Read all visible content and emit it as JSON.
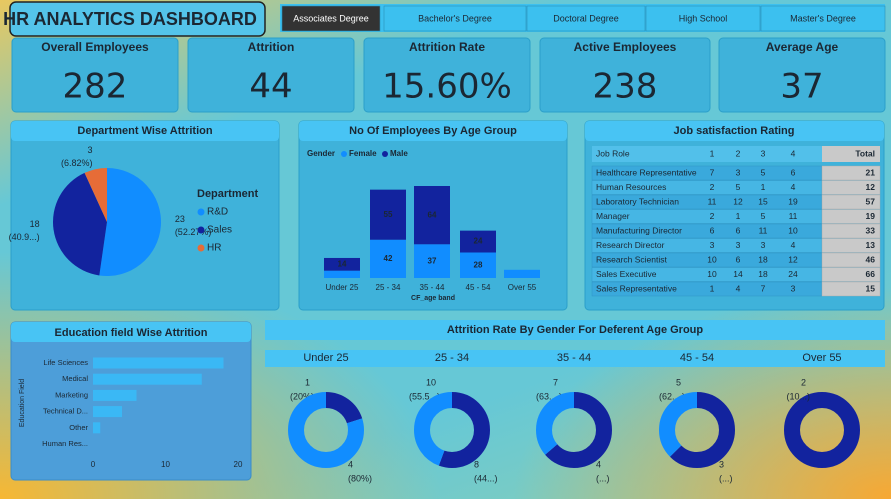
{
  "header": {
    "title": "HR ANALYTICS DASHBOARD"
  },
  "tabs": [
    {
      "label": "Associates Degree",
      "selected": true
    },
    {
      "label": "Bachelor's Degree",
      "selected": false
    },
    {
      "label": "Doctoral Degree",
      "selected": false
    },
    {
      "label": "High School",
      "selected": false
    },
    {
      "label": "Master's Degree",
      "selected": false
    }
  ],
  "kpis": [
    {
      "label": "Overall Employees",
      "value": 282
    },
    {
      "label": "Attrition",
      "value": 44
    },
    {
      "label": "Attrition Rate",
      "value": "15.60%"
    },
    {
      "label": "Active Employees",
      "value": 238
    },
    {
      "label": "Average Age",
      "value": 37
    }
  ],
  "table": {
    "title": "Job satisfaction Rating",
    "columns": [
      "Job Role",
      "1",
      "2",
      "3",
      "4",
      "Total"
    ],
    "rows": [
      [
        "Healthcare Representative",
        7,
        3,
        5,
        6,
        21
      ],
      [
        "Human Resources",
        2,
        5,
        1,
        4,
        12
      ],
      [
        "Laboratory Technician",
        11,
        12,
        15,
        19,
        57
      ],
      [
        "Manager",
        2,
        1,
        5,
        11,
        19
      ],
      [
        "Manufacturing Director",
        6,
        6,
        11,
        10,
        33
      ],
      [
        "Research Director",
        3,
        3,
        3,
        4,
        13
      ],
      [
        "Research Scientist",
        10,
        6,
        18,
        12,
        46
      ],
      [
        "Sales Executive",
        10,
        14,
        18,
        24,
        66
      ],
      [
        "Sales Representative",
        1,
        4,
        7,
        3,
        15
      ]
    ]
  },
  "chart_data": [
    {
      "type": "pie",
      "title": "Department Wise Attrition",
      "legend_title": "Department",
      "categories": [
        "R&D",
        "Sales",
        "HR"
      ],
      "values": [
        23,
        18,
        3
      ],
      "percent_labels": [
        "(52.27%)",
        "(40.9...)",
        "(6.82%)"
      ],
      "colors": [
        "#118dff",
        "#12239e",
        "#e66c37"
      ]
    },
    {
      "type": "bar",
      "stacked": true,
      "title": "No Of Employees By Age Group",
      "legend_title": "Gender",
      "x_label": "CF_age band",
      "categories": [
        "Under 25",
        "25 - 34",
        "35 - 44",
        "45 - 54",
        "Over 55"
      ],
      "series": [
        {
          "name": "Female",
          "color": "#118dff",
          "values": [
            8,
            42,
            37,
            28,
            9
          ]
        },
        {
          "name": "Male",
          "color": "#12239e",
          "values": [
            14,
            55,
            64,
            24,
            0
          ]
        }
      ]
    },
    {
      "type": "hbar",
      "title": "Education field Wise Attrition",
      "y_label": "Education Field",
      "categories": [
        "Life Sciences",
        "Medical",
        "Marketing",
        "Technical D...",
        "Other",
        "Human Res..."
      ],
      "values": [
        18,
        15,
        6,
        4,
        1,
        0
      ],
      "color": "#3ab8f5",
      "xlim": [
        0,
        20
      ],
      "xticks": [
        0,
        10,
        20
      ]
    },
    {
      "type": "donut",
      "title": "Attrition Rate By Gender For Deferent Age Group",
      "categories": [
        "Under 25",
        "25 - 34",
        "35 - 44",
        "45 - 54",
        "Over 55"
      ],
      "series": [
        {
          "color": "#12239e",
          "values": [
            1,
            10,
            7,
            5,
            2
          ],
          "percent_labels": [
            "(20%)",
            "(55.5...)",
            "(63....)",
            "(62....)",
            "(10...)"
          ]
        },
        {
          "color": "#118dff",
          "values": [
            4,
            8,
            4,
            3,
            0
          ],
          "percent_labels": [
            "(80%)",
            "(44...)",
            "(...)",
            "(...)",
            null
          ]
        }
      ]
    }
  ]
}
